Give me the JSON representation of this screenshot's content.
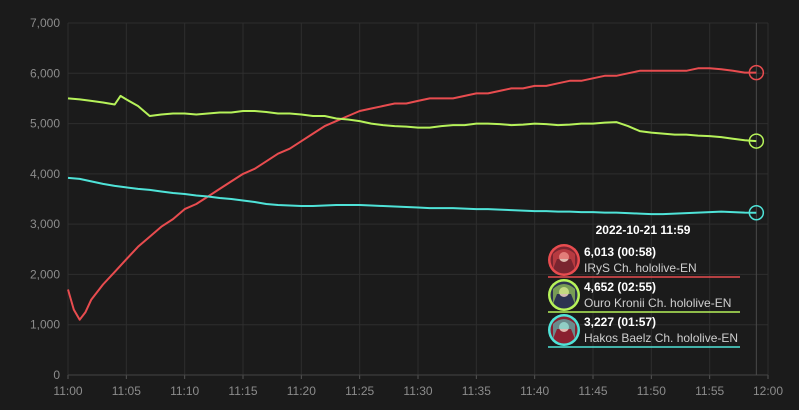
{
  "chart_data": {
    "type": "line",
    "x_ticks": [
      "11:00",
      "11:05",
      "11:10",
      "11:15",
      "11:20",
      "11:25",
      "11:30",
      "11:35",
      "11:40",
      "11:45",
      "11:50",
      "11:55",
      "12:00"
    ],
    "y_ticks": [
      "0",
      "1,000",
      "2,000",
      "3,000",
      "4,000",
      "5,000",
      "6,000",
      "7,000"
    ],
    "ylim": [
      0,
      7000
    ],
    "xlim_minutes": [
      0,
      60
    ],
    "grid": true,
    "colors": {
      "irys": "#e84c4f",
      "kronii": "#b6f25a",
      "baelz": "#4fe3d8",
      "background": "#1b1b1b",
      "grid": "#2e2e2e"
    },
    "series": [
      {
        "key": "irys",
        "x": [
          0,
          0.5,
          1,
          1.5,
          2,
          3,
          4,
          5,
          6,
          7,
          8,
          9,
          10,
          11,
          12,
          13,
          14,
          15,
          16,
          17,
          18,
          19,
          20,
          21,
          22,
          23,
          24,
          25,
          26,
          27,
          28,
          29,
          30,
          31,
          32,
          33,
          34,
          35,
          36,
          37,
          38,
          39,
          40,
          41,
          42,
          43,
          44,
          45,
          46,
          47,
          48,
          49,
          50,
          51,
          52,
          53,
          54,
          55,
          56,
          57,
          58,
          59
        ],
        "y": [
          1700,
          1300,
          1100,
          1250,
          1500,
          1800,
          2050,
          2300,
          2550,
          2750,
          2950,
          3100,
          3300,
          3400,
          3550,
          3700,
          3850,
          4000,
          4100,
          4250,
          4400,
          4500,
          4650,
          4800,
          4950,
          5050,
          5150,
          5250,
          5300,
          5350,
          5400,
          5400,
          5450,
          5500,
          5500,
          5500,
          5550,
          5600,
          5600,
          5650,
          5700,
          5700,
          5750,
          5750,
          5800,
          5850,
          5850,
          5900,
          5950,
          5950,
          6000,
          6050,
          6050,
          6050,
          6050,
          6050,
          6100,
          6100,
          6080,
          6050,
          6013,
          6013
        ]
      },
      {
        "key": "kronii",
        "x": [
          0,
          1,
          2,
          3,
          4,
          4.5,
          5,
          6,
          7,
          8,
          9,
          10,
          11,
          12,
          13,
          14,
          15,
          16,
          17,
          18,
          19,
          20,
          21,
          22,
          23,
          24,
          25,
          26,
          27,
          28,
          29,
          30,
          31,
          32,
          33,
          34,
          35,
          36,
          37,
          38,
          39,
          40,
          41,
          42,
          43,
          44,
          45,
          46,
          47,
          48,
          49,
          50,
          51,
          52,
          53,
          54,
          55,
          56,
          57,
          58,
          59
        ],
        "y": [
          5500,
          5480,
          5450,
          5420,
          5380,
          5550,
          5480,
          5350,
          5150,
          5180,
          5200,
          5200,
          5180,
          5200,
          5220,
          5220,
          5250,
          5250,
          5230,
          5200,
          5200,
          5180,
          5150,
          5150,
          5100,
          5080,
          5050,
          5000,
          4970,
          4950,
          4940,
          4920,
          4920,
          4950,
          4970,
          4970,
          5000,
          5000,
          4990,
          4970,
          4980,
          5000,
          4990,
          4970,
          4980,
          5000,
          5000,
          5020,
          5030,
          4950,
          4850,
          4820,
          4800,
          4780,
          4780,
          4760,
          4750,
          4730,
          4700,
          4670,
          4652
        ]
      },
      {
        "key": "baelz",
        "x": [
          0,
          1,
          2,
          3,
          4,
          5,
          6,
          7,
          8,
          9,
          10,
          11,
          12,
          13,
          14,
          15,
          16,
          17,
          18,
          19,
          20,
          21,
          22,
          23,
          24,
          25,
          26,
          27,
          28,
          29,
          30,
          31,
          32,
          33,
          34,
          35,
          36,
          37,
          38,
          39,
          40,
          41,
          42,
          43,
          44,
          45,
          46,
          47,
          48,
          49,
          50,
          51,
          52,
          53,
          54,
          55,
          56,
          57,
          58,
          59
        ],
        "y": [
          3920,
          3900,
          3850,
          3800,
          3760,
          3730,
          3700,
          3680,
          3650,
          3620,
          3600,
          3570,
          3550,
          3520,
          3500,
          3470,
          3440,
          3400,
          3380,
          3370,
          3360,
          3360,
          3370,
          3380,
          3380,
          3380,
          3370,
          3360,
          3350,
          3340,
          3330,
          3320,
          3320,
          3320,
          3310,
          3300,
          3300,
          3290,
          3280,
          3270,
          3260,
          3260,
          3250,
          3250,
          3240,
          3240,
          3230,
          3230,
          3220,
          3210,
          3200,
          3200,
          3210,
          3220,
          3230,
          3240,
          3250,
          3240,
          3230,
          3227
        ]
      }
    ]
  },
  "tooltip": {
    "title": "2022-10-21 11:59",
    "entries": [
      {
        "key": "irys",
        "value": "6,013 (00:58)",
        "name": "IRyS Ch. hololive-EN",
        "color": "#e84c4f",
        "avatar_bg": "#7a2530"
      },
      {
        "key": "kronii",
        "value": "4,652 (02:55)",
        "name": "Ouro Kronii Ch. hololive-EN",
        "color": "#b6f25a",
        "avatar_bg": "#2c3350"
      },
      {
        "key": "baelz",
        "value": "3,227 (01:57)",
        "name": "Hakos Baelz Ch. hololive-EN",
        "color": "#4fe3d8",
        "avatar_bg": "#8a2030"
      }
    ]
  }
}
